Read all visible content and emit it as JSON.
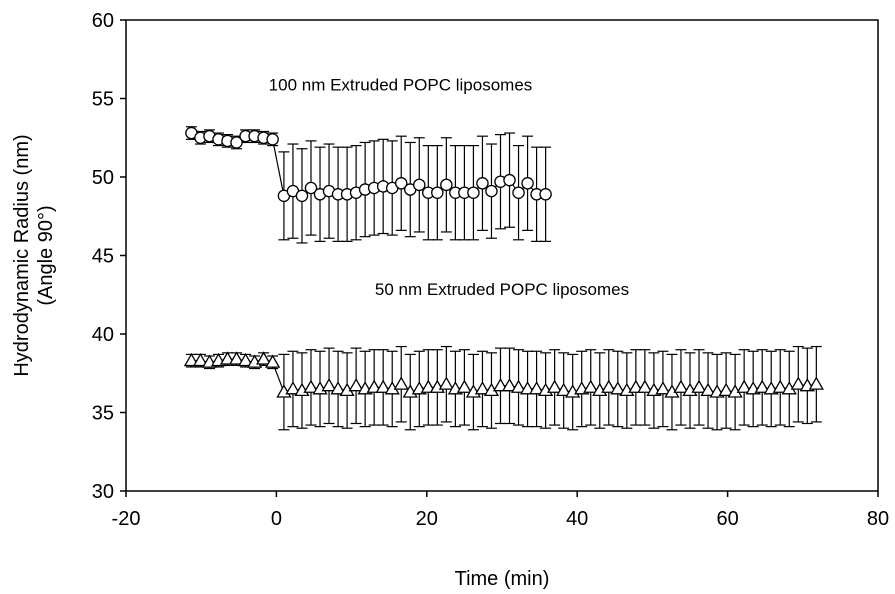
{
  "chart_data": {
    "type": "scatter",
    "xlabel": "Time (min)",
    "ylabel": "Hydrodynamic Radius (nm)",
    "ylabel_sub": "(Angle 90°)",
    "xlim": [
      -20,
      80
    ],
    "ylim": [
      30,
      60
    ],
    "xticks": [
      -20,
      0,
      20,
      40,
      60,
      80
    ],
    "yticks": [
      30,
      35,
      40,
      45,
      50,
      55,
      60
    ],
    "grid": false,
    "annotations": [
      {
        "text": "100 nm Extruded POPC liposomes",
        "x": 16.5,
        "y": 55.5
      },
      {
        "text": "50 nm Extruded POPC liposomes",
        "x": 30.0,
        "y": 42.5
      }
    ],
    "series": [
      {
        "marker": "circle",
        "x": [
          -11.3,
          -10.1,
          -8.9,
          -7.7,
          -6.5,
          -5.3,
          -4.1,
          -2.9,
          -1.7,
          -0.5,
          1.0,
          2.2,
          3.4,
          4.6,
          5.8,
          7.0,
          8.2,
          9.4,
          10.6,
          11.8,
          13.0,
          14.2,
          15.4,
          16.6,
          17.8,
          19.0,
          20.2,
          21.4,
          22.6,
          23.8,
          25.0,
          26.2,
          27.4,
          28.6,
          29.8,
          31.0,
          32.2,
          33.4,
          34.6,
          35.8
        ],
        "y": [
          52.8,
          52.5,
          52.6,
          52.4,
          52.3,
          52.2,
          52.6,
          52.6,
          52.5,
          52.4,
          48.8,
          49.1,
          48.8,
          49.3,
          48.9,
          49.1,
          48.9,
          48.9,
          49.0,
          49.2,
          49.3,
          49.4,
          49.3,
          49.6,
          49.2,
          49.5,
          49.0,
          49.0,
          49.5,
          49.0,
          49.0,
          49.0,
          49.6,
          49.1,
          49.7,
          49.8,
          49.0,
          49.6,
          48.9,
          48.9
        ],
        "err": [
          0.4,
          0.4,
          0.4,
          0.4,
          0.4,
          0.4,
          0.4,
          0.4,
          0.4,
          0.4,
          2.8,
          3.0,
          3.0,
          3.0,
          3.0,
          3.0,
          3.0,
          3.0,
          3.0,
          3.0,
          3.0,
          3.0,
          3.0,
          3.0,
          3.0,
          3.0,
          3.0,
          3.0,
          3.0,
          3.0,
          3.0,
          3.0,
          3.0,
          3.0,
          3.0,
          3.0,
          3.0,
          3.0,
          3.0,
          3.0
        ]
      },
      {
        "marker": "triangle",
        "x": [
          -11.3,
          -10.1,
          -8.9,
          -7.7,
          -6.5,
          -5.3,
          -4.1,
          -2.9,
          -1.7,
          -0.5,
          1.0,
          2.2,
          3.4,
          4.6,
          5.8,
          7.0,
          8.2,
          9.4,
          10.6,
          11.8,
          13.0,
          14.2,
          15.4,
          16.6,
          17.8,
          19.0,
          20.2,
          21.4,
          22.6,
          23.8,
          25.0,
          26.2,
          27.4,
          28.6,
          29.8,
          31.0,
          32.2,
          33.4,
          34.6,
          35.8,
          37.0,
          38.2,
          39.4,
          40.6,
          41.8,
          43.0,
          44.2,
          45.4,
          46.6,
          47.8,
          49.0,
          50.2,
          51.4,
          52.6,
          53.8,
          55.0,
          56.2,
          57.4,
          58.6,
          59.8,
          61.0,
          62.2,
          63.4,
          64.6,
          65.8,
          67.0,
          68.2,
          69.4,
          70.6,
          71.8
        ],
        "y": [
          38.3,
          38.3,
          38.2,
          38.3,
          38.4,
          38.4,
          38.3,
          38.2,
          38.4,
          38.2,
          36.3,
          36.5,
          36.4,
          36.6,
          36.5,
          36.7,
          36.5,
          36.4,
          36.7,
          36.5,
          36.6,
          36.6,
          36.5,
          36.8,
          36.3,
          36.5,
          36.6,
          36.6,
          36.8,
          36.5,
          36.6,
          36.3,
          36.5,
          36.4,
          36.7,
          36.7,
          36.6,
          36.5,
          36.5,
          36.4,
          36.6,
          36.4,
          36.3,
          36.5,
          36.6,
          36.4,
          36.6,
          36.5,
          36.4,
          36.6,
          36.6,
          36.4,
          36.5,
          36.3,
          36.6,
          36.4,
          36.6,
          36.4,
          36.3,
          36.4,
          36.3,
          36.6,
          36.5,
          36.6,
          36.5,
          36.6,
          36.5,
          36.8,
          36.7,
          36.8
        ],
        "err": [
          0.4,
          0.4,
          0.4,
          0.4,
          0.4,
          0.4,
          0.4,
          0.4,
          0.4,
          0.4,
          2.4,
          2.4,
          2.4,
          2.4,
          2.4,
          2.4,
          2.4,
          2.4,
          2.4,
          2.4,
          2.4,
          2.4,
          2.4,
          2.4,
          2.4,
          2.4,
          2.4,
          2.4,
          2.4,
          2.4,
          2.4,
          2.4,
          2.4,
          2.4,
          2.4,
          2.4,
          2.4,
          2.4,
          2.4,
          2.4,
          2.4,
          2.4,
          2.4,
          2.4,
          2.4,
          2.4,
          2.4,
          2.4,
          2.4,
          2.4,
          2.4,
          2.4,
          2.4,
          2.4,
          2.4,
          2.4,
          2.4,
          2.4,
          2.4,
          2.4,
          2.4,
          2.4,
          2.4,
          2.4,
          2.4,
          2.4,
          2.4,
          2.4,
          2.4,
          2.4
        ]
      }
    ]
  }
}
